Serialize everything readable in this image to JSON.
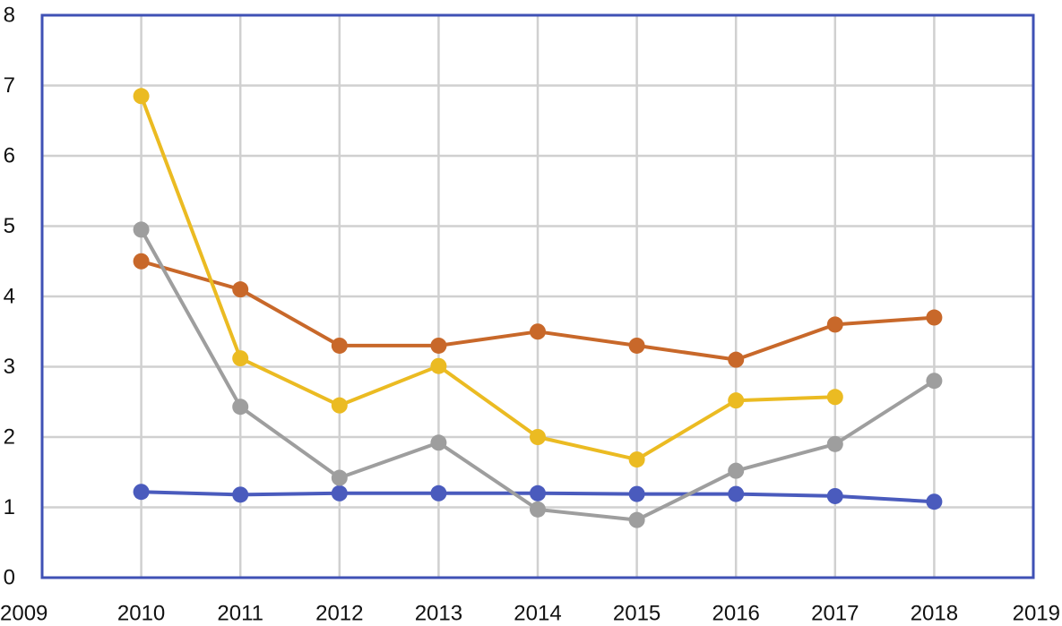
{
  "chart_data": {
    "type": "line",
    "x_axis": {
      "range": [
        2009,
        2019
      ],
      "ticks": [
        2009,
        2010,
        2011,
        2012,
        2013,
        2014,
        2015,
        2016,
        2017,
        2018,
        2019
      ]
    },
    "y_axis": {
      "range": [
        0,
        8
      ],
      "ticks": [
        0,
        1,
        2,
        3,
        4,
        5,
        6,
        7,
        8
      ]
    },
    "grid": true,
    "legend": "none",
    "series": [
      {
        "color": "#4a5bbd",
        "x": [
          2010,
          2011,
          2012,
          2013,
          2014,
          2015,
          2016,
          2017,
          2018
        ],
        "y": [
          1.22,
          1.18,
          1.2,
          1.2,
          1.2,
          1.19,
          1.19,
          1.16,
          1.08
        ]
      },
      {
        "color": "#c8682a",
        "x": [
          2010,
          2011,
          2012,
          2013,
          2014,
          2015,
          2016,
          2017,
          2018
        ],
        "y": [
          4.5,
          4.1,
          3.3,
          3.3,
          3.5,
          3.3,
          3.1,
          3.6,
          3.7
        ]
      },
      {
        "color": "#9e9e9e",
        "x": [
          2010,
          2011,
          2012,
          2013,
          2014,
          2015,
          2016,
          2017,
          2018
        ],
        "y": [
          4.95,
          2.43,
          1.42,
          1.92,
          0.97,
          0.82,
          1.52,
          1.9,
          2.8
        ]
      },
      {
        "color": "#ebbb22",
        "x": [
          2010,
          2011,
          2012,
          2013,
          2014,
          2015,
          2016,
          2017
        ],
        "y": [
          6.85,
          3.12,
          2.45,
          3.01,
          2.0,
          1.68,
          2.52,
          2.57
        ]
      }
    ]
  }
}
